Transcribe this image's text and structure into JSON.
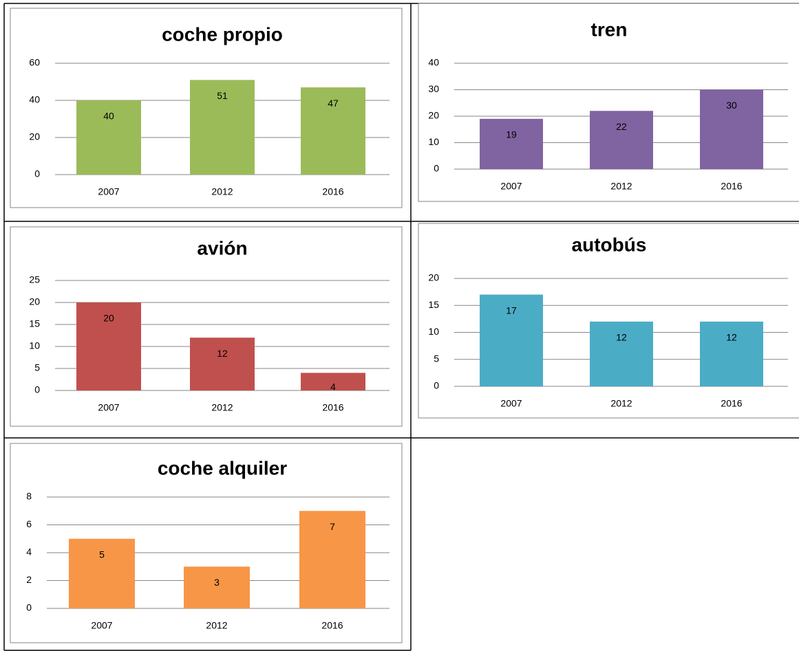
{
  "chart_data": [
    {
      "type": "bar",
      "title": "coche propio",
      "categories": [
        "2007",
        "2012",
        "2016"
      ],
      "values": [
        40,
        51,
        47
      ],
      "color": "#9bbb59",
      "ylim": [
        0,
        60
      ],
      "yticks": [
        0,
        20,
        40,
        60
      ],
      "grid": true
    },
    {
      "type": "bar",
      "title": "tren",
      "categories": [
        "2007",
        "2012",
        "2016"
      ],
      "values": [
        19,
        22,
        30
      ],
      "color": "#8064a2",
      "ylim": [
        0,
        40
      ],
      "yticks": [
        0,
        10,
        20,
        30,
        40
      ],
      "grid": true
    },
    {
      "type": "bar",
      "title": "avión",
      "categories": [
        "2007",
        "2012",
        "2016"
      ],
      "values": [
        20,
        12,
        4
      ],
      "color": "#c0504d",
      "ylim": [
        0,
        25
      ],
      "yticks": [
        0,
        5,
        10,
        15,
        20,
        25
      ],
      "grid": true
    },
    {
      "type": "bar",
      "title": "autobús",
      "categories": [
        "2007",
        "2012",
        "2016"
      ],
      "values": [
        17,
        12,
        12
      ],
      "color": "#4bacc6",
      "ylim": [
        0,
        20
      ],
      "yticks": [
        0,
        5,
        10,
        15,
        20
      ],
      "grid": true
    },
    {
      "type": "bar",
      "title": "coche alquiler",
      "categories": [
        "2007",
        "2012",
        "2016"
      ],
      "values": [
        5,
        3,
        7
      ],
      "color": "#f79646",
      "ylim": [
        0,
        8
      ],
      "yticks": [
        0,
        2,
        4,
        6,
        8
      ],
      "grid": true
    }
  ]
}
